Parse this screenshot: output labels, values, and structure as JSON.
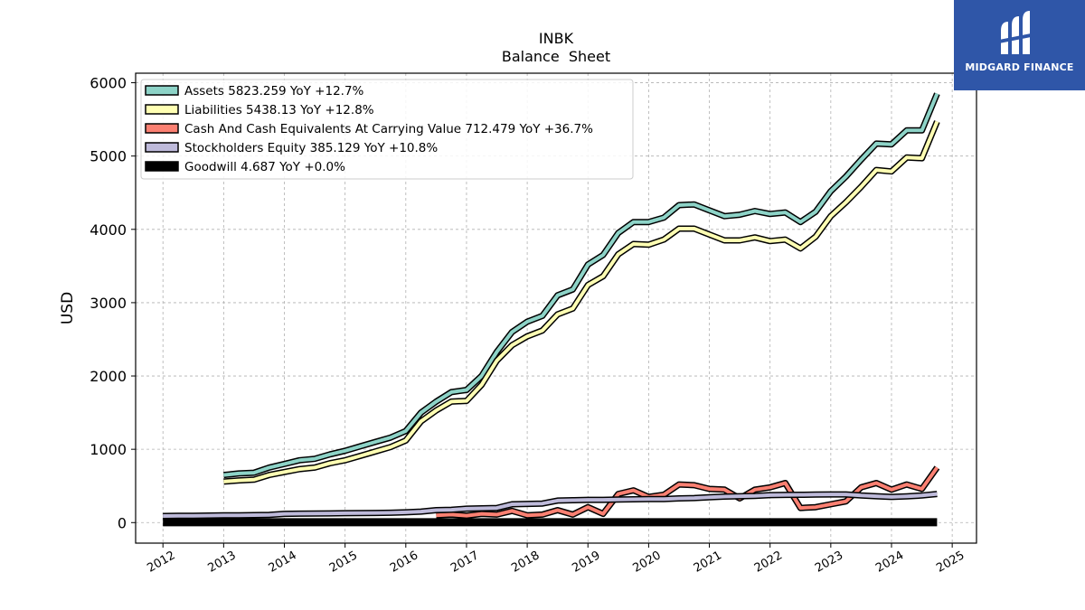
{
  "chart_data": {
    "type": "line",
    "title": "INBK",
    "subtitle": "Balance  Sheet",
    "ylabel": "USD",
    "xlabel": "",
    "ylim": [
      -280,
      6130
    ],
    "xlim": [
      2011.55,
      2025.4
    ],
    "yticks": [
      0,
      1000,
      2000,
      3000,
      4000,
      5000,
      6000
    ],
    "xticks": [
      2012,
      2013,
      2014,
      2015,
      2016,
      2017,
      2018,
      2019,
      2020,
      2021,
      2022,
      2023,
      2024,
      2025
    ],
    "grid": true,
    "legend_position": "top-left",
    "series": [
      {
        "name": "Assets",
        "legend": "Assets  5823.259 YoY +12.7%",
        "color": "#8dd3c7",
        "x": [
          2013.0,
          2013.25,
          2013.5,
          2013.75,
          2014.0,
          2014.25,
          2014.5,
          2014.75,
          2015.0,
          2015.25,
          2015.5,
          2015.75,
          2016.0,
          2016.25,
          2016.5,
          2016.75,
          2017.0,
          2017.25,
          2017.5,
          2017.75,
          2018.0,
          2018.25,
          2018.5,
          2018.75,
          2019.0,
          2019.25,
          2019.5,
          2019.75,
          2020.0,
          2020.25,
          2020.5,
          2020.75,
          2021.0,
          2021.25,
          2021.5,
          2021.75,
          2022.0,
          2022.25,
          2022.5,
          2022.75,
          2023.0,
          2023.25,
          2023.5,
          2023.75,
          2024.0,
          2024.25,
          2024.5,
          2024.75
        ],
        "y": [
          650,
          670,
          680,
          750,
          800,
          850,
          870,
          930,
          980,
          1040,
          1100,
          1160,
          1250,
          1500,
          1650,
          1780,
          1810,
          2000,
          2330,
          2600,
          2740,
          2820,
          3100,
          3180,
          3520,
          3650,
          3950,
          4100,
          4100,
          4160,
          4330,
          4340,
          4260,
          4180,
          4200,
          4250,
          4210,
          4230,
          4100,
          4240,
          4520,
          4720,
          4950,
          5170,
          5160,
          5350,
          5350,
          5850
        ]
      },
      {
        "name": "Liabilities",
        "legend": "Liabilities  5438.13 YoY +12.8%",
        "color": "#ffffb3",
        "x": [
          2013.0,
          2013.25,
          2013.5,
          2013.75,
          2014.0,
          2014.25,
          2014.5,
          2014.75,
          2015.0,
          2015.25,
          2015.5,
          2015.75,
          2016.0,
          2016.25,
          2016.5,
          2016.75,
          2017.0,
          2017.25,
          2017.5,
          2017.75,
          2018.0,
          2018.25,
          2018.5,
          2018.75,
          2019.0,
          2019.25,
          2019.5,
          2019.75,
          2020.0,
          2020.25,
          2020.5,
          2020.75,
          2021.0,
          2021.25,
          2021.5,
          2021.75,
          2022.0,
          2022.25,
          2022.5,
          2022.75,
          2023.0,
          2023.25,
          2023.5,
          2023.75,
          2024.0,
          2024.25,
          2024.5,
          2024.75
        ],
        "y": [
          560,
          575,
          585,
          650,
          690,
          730,
          750,
          810,
          850,
          910,
          970,
          1030,
          1120,
          1380,
          1530,
          1650,
          1660,
          1880,
          2210,
          2420,
          2540,
          2620,
          2840,
          2920,
          3240,
          3360,
          3660,
          3800,
          3790,
          3860,
          4010,
          4010,
          3930,
          3850,
          3850,
          3890,
          3840,
          3860,
          3740,
          3900,
          4180,
          4370,
          4580,
          4810,
          4790,
          4980,
          4970,
          5470
        ]
      },
      {
        "name": "Cash And Cash Equivalents At Carrying Value",
        "legend": "Cash And Cash Equivalents At Carrying Value  712.479 YoY +36.7%",
        "color": "#fb8072",
        "x": [
          2016.5,
          2016.75,
          2017.0,
          2017.25,
          2017.5,
          2017.75,
          2018.0,
          2018.25,
          2018.5,
          2018.75,
          2019.0,
          2019.25,
          2019.5,
          2019.75,
          2020.0,
          2020.25,
          2020.5,
          2020.75,
          2021.0,
          2021.25,
          2021.5,
          2021.75,
          2022.0,
          2022.25,
          2022.5,
          2022.75,
          2023.0,
          2023.25,
          2023.5,
          2023.75,
          2024.0,
          2024.25,
          2024.5,
          2024.75
        ],
        "y": [
          100,
          110,
          95,
          120,
          110,
          160,
          100,
          110,
          170,
          110,
          210,
          120,
          390,
          440,
          350,
          380,
          520,
          510,
          460,
          450,
          330,
          450,
          480,
          540,
          200,
          210,
          250,
          290,
          480,
          540,
          450,
          520,
          460,
          750
        ]
      },
      {
        "name": "Stockholders Equity",
        "legend": "Stockholders Equity  385.129 YoY +10.8%",
        "color": "#bebada",
        "x": [
          2012.0,
          2012.25,
          2012.5,
          2012.75,
          2013.0,
          2013.25,
          2013.5,
          2013.75,
          2014.0,
          2014.25,
          2014.5,
          2014.75,
          2015.0,
          2015.25,
          2015.5,
          2015.75,
          2016.0,
          2016.25,
          2016.5,
          2016.75,
          2017.0,
          2017.25,
          2017.5,
          2017.75,
          2018.0,
          2018.25,
          2018.5,
          2018.75,
          2019.0,
          2019.25,
          2019.5,
          2019.75,
          2020.0,
          2020.25,
          2020.5,
          2020.75,
          2021.0,
          2021.25,
          2021.5,
          2021.75,
          2022.0,
          2022.25,
          2022.5,
          2022.75,
          2023.0,
          2023.25,
          2023.5,
          2023.75,
          2024.0,
          2024.25,
          2024.5,
          2024.75
        ],
        "y": [
          90,
          92,
          94,
          96,
          98,
          100,
          102,
          105,
          120,
          122,
          124,
          126,
          128,
          130,
          132,
          134,
          140,
          150,
          170,
          175,
          190,
          195,
          200,
          250,
          255,
          260,
          300,
          305,
          310,
          310,
          315,
          318,
          320,
          322,
          330,
          335,
          345,
          355,
          360,
          365,
          375,
          378,
          380,
          382,
          385,
          385,
          370,
          360,
          350,
          358,
          370,
          390
        ]
      },
      {
        "name": "Goodwill",
        "legend": "Goodwill  4.687 YoY +0.0%",
        "color": "#000000",
        "x": [
          2012.0,
          2024.75
        ],
        "y": [
          4.687,
          4.687
        ]
      }
    ]
  },
  "logo": {
    "text": "MIDGARD FINANCE",
    "background": "#2f56a8"
  }
}
